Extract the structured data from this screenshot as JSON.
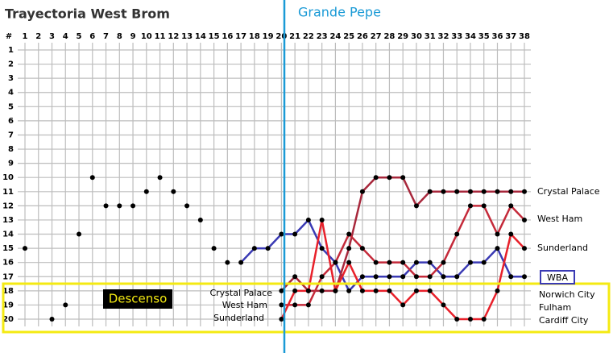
{
  "chart_data": {
    "type": "line",
    "title": "Trayectoria West Brom",
    "subtitle": "Grande Pepe",
    "corner_label": "#",
    "zone_label": "Descenso",
    "x": [
      1,
      2,
      3,
      4,
      5,
      6,
      7,
      8,
      9,
      10,
      11,
      12,
      13,
      14,
      15,
      16,
      17,
      18,
      19,
      20,
      21,
      22,
      23,
      24,
      25,
      26,
      27,
      28,
      29,
      30,
      31,
      32,
      33,
      34,
      35,
      36,
      37,
      38
    ],
    "xlim": [
      1,
      38
    ],
    "xticks": [
      1,
      2,
      3,
      4,
      5,
      6,
      7,
      8,
      9,
      10,
      11,
      12,
      13,
      14,
      15,
      16,
      17,
      18,
      19,
      20,
      21,
      22,
      23,
      24,
      25,
      26,
      27,
      28,
      29,
      30,
      31,
      32,
      33,
      34,
      35,
      36,
      37,
      38
    ],
    "ylim": [
      1,
      20
    ],
    "yticks": [
      1,
      2,
      3,
      4,
      5,
      6,
      7,
      8,
      9,
      10,
      11,
      12,
      13,
      14,
      15,
      16,
      17,
      18,
      19,
      20
    ],
    "y_inverted": true,
    "grid": true,
    "marker_color": "#000000",
    "series": [
      {
        "name": "WBA",
        "color": "#3a3ab4",
        "line_start_round": 17,
        "values": [
          15,
          null,
          20,
          19,
          14,
          10,
          12,
          12,
          12,
          11,
          10,
          11,
          12,
          13,
          15,
          16,
          16,
          15,
          15,
          14,
          14,
          13,
          15,
          16,
          18,
          17,
          17,
          17,
          17,
          16,
          16,
          17,
          17,
          16,
          16,
          15,
          17,
          17
        ]
      },
      {
        "name": "Crystal Palace",
        "color": "#a8283c",
        "values": [
          null,
          null,
          null,
          null,
          null,
          null,
          null,
          null,
          null,
          null,
          null,
          null,
          null,
          null,
          null,
          null,
          null,
          null,
          null,
          18,
          17,
          18,
          18,
          18,
          15,
          11,
          10,
          10,
          10,
          12,
          11,
          11,
          11,
          11,
          11,
          11,
          11,
          11
        ]
      },
      {
        "name": "West Ham",
        "color": "#c42a3a",
        "values": [
          null,
          null,
          null,
          null,
          null,
          null,
          null,
          null,
          null,
          null,
          null,
          null,
          null,
          null,
          null,
          null,
          null,
          null,
          null,
          19,
          19,
          19,
          17,
          16,
          14,
          15,
          16,
          16,
          16,
          17,
          17,
          16,
          14,
          12,
          12,
          14,
          12,
          13
        ]
      },
      {
        "name": "Sunderland",
        "color": "#e8202a",
        "values": [
          null,
          null,
          null,
          null,
          null,
          null,
          null,
          null,
          null,
          null,
          null,
          null,
          null,
          null,
          null,
          null,
          null,
          null,
          null,
          20,
          18,
          18,
          13,
          18,
          16,
          18,
          18,
          18,
          19,
          18,
          18,
          19,
          20,
          20,
          20,
          18,
          14,
          15
        ]
      }
    ],
    "annotations": [
      "Norwich City",
      "Fulham",
      "Cardiff City"
    ]
  }
}
